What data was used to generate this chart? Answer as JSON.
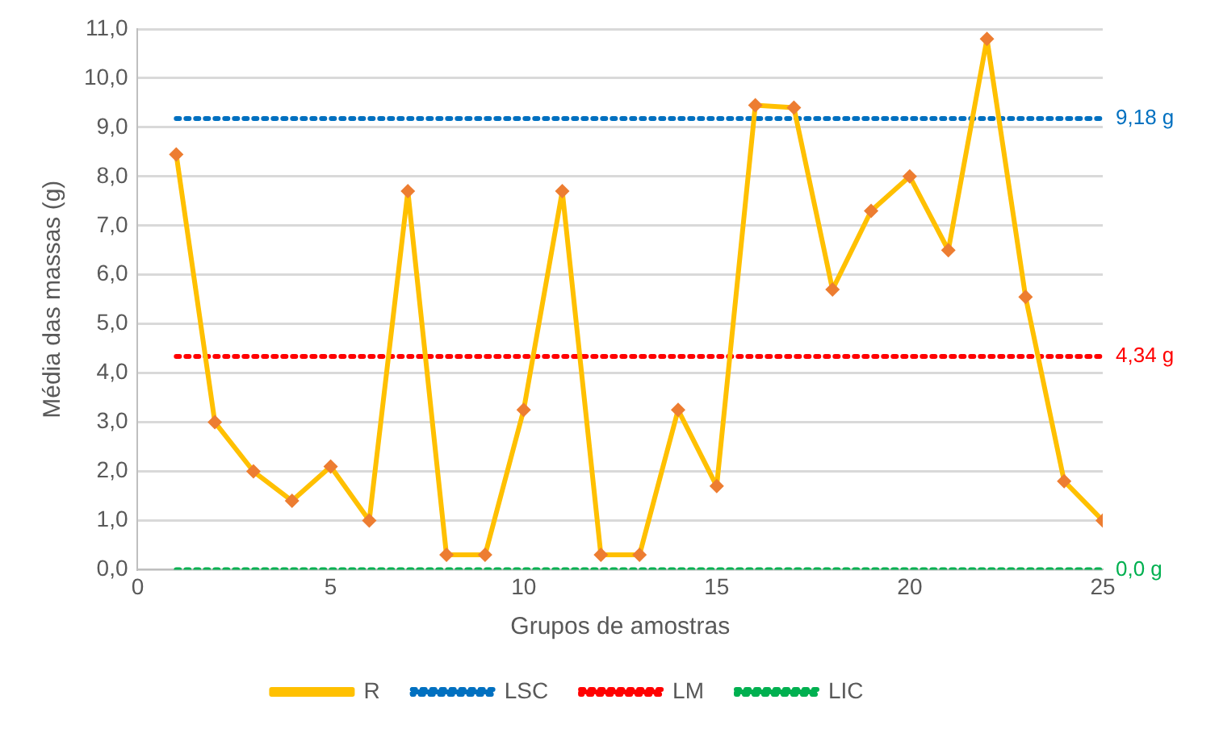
{
  "chart_data": {
    "type": "line",
    "xlabel": "Grupos de amostras",
    "ylabel": "Média das massas (g)",
    "x": [
      1,
      2,
      3,
      4,
      5,
      6,
      7,
      8,
      9,
      10,
      11,
      12,
      13,
      14,
      15,
      16,
      17,
      18,
      19,
      20,
      21,
      22,
      23,
      24,
      25
    ],
    "series": [
      {
        "name": "R",
        "color": "#ffc000",
        "marker": "diamond",
        "line_style": "solid",
        "values": [
          8.45,
          3.0,
          2.0,
          1.4,
          2.1,
          1.0,
          7.7,
          0.3,
          0.3,
          3.25,
          7.7,
          0.3,
          0.3,
          3.25,
          1.7,
          9.45,
          9.4,
          5.7,
          7.3,
          8.0,
          6.5,
          10.8,
          5.55,
          1.8,
          1.0
        ]
      },
      {
        "name": "LSC",
        "color": "#0070c0",
        "marker": "none",
        "line_style": "dotted",
        "values": [
          9.18,
          9.18,
          9.18,
          9.18,
          9.18,
          9.18,
          9.18,
          9.18,
          9.18,
          9.18,
          9.18,
          9.18,
          9.18,
          9.18,
          9.18,
          9.18,
          9.18,
          9.18,
          9.18,
          9.18,
          9.18,
          9.18,
          9.18,
          9.18,
          9.18
        ]
      },
      {
        "name": "LM",
        "color": "#ff0000",
        "marker": "none",
        "line_style": "dotted",
        "values": [
          4.34,
          4.34,
          4.34,
          4.34,
          4.34,
          4.34,
          4.34,
          4.34,
          4.34,
          4.34,
          4.34,
          4.34,
          4.34,
          4.34,
          4.34,
          4.34,
          4.34,
          4.34,
          4.34,
          4.34,
          4.34,
          4.34,
          4.34,
          4.34,
          4.34
        ]
      },
      {
        "name": "LIC",
        "color": "#00b050",
        "marker": "none",
        "line_style": "dotted",
        "values": [
          0.0,
          0.0,
          0.0,
          0.0,
          0.0,
          0.0,
          0.0,
          0.0,
          0.0,
          0.0,
          0.0,
          0.0,
          0.0,
          0.0,
          0.0,
          0.0,
          0.0,
          0.0,
          0.0,
          0.0,
          0.0,
          0.0,
          0.0,
          0.0,
          0.0
        ]
      }
    ],
    "annotations": [
      "9,18 g",
      "4,34 g",
      "0,0 g"
    ],
    "xlim": [
      0,
      25
    ],
    "xticks": [
      0,
      5,
      10,
      15,
      20,
      25
    ],
    "ylim": [
      0,
      11
    ],
    "yticks": [
      {
        "value": 0,
        "label": "0,0"
      },
      {
        "value": 1,
        "label": "1,0"
      },
      {
        "value": 2,
        "label": "2,0"
      },
      {
        "value": 3,
        "label": "3,0"
      },
      {
        "value": 4,
        "label": "4,0"
      },
      {
        "value": 5,
        "label": "5,0"
      },
      {
        "value": 6,
        "label": "6,0"
      },
      {
        "value": 7,
        "label": "7,0"
      },
      {
        "value": 8,
        "label": "8,0"
      },
      {
        "value": 9,
        "label": "9,0"
      },
      {
        "value": 10,
        "label": "10,0"
      },
      {
        "value": 11,
        "label": "11,0"
      }
    ],
    "grid": "y",
    "legend": "bottom"
  }
}
